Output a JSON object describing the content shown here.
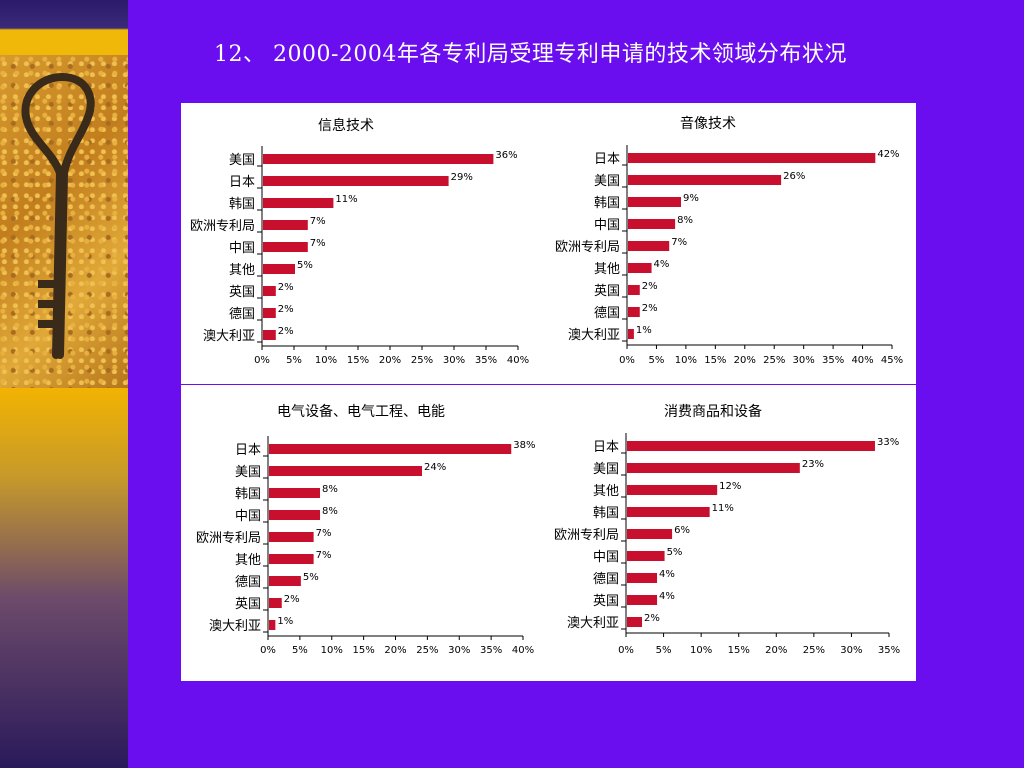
{
  "title": "12、 2000-2004年各专利局受理专利申请的技术领域分布状况",
  "colors": {
    "bar": "#c8102e",
    "background": "#6a0ef0",
    "panel": "#ffffff"
  },
  "chart_data": [
    {
      "type": "bar",
      "orientation": "horizontal",
      "title": "信息技术",
      "categories": [
        "美国",
        "日本",
        "韩国",
        "欧洲专利局",
        "中国",
        "其他",
        "英国",
        "德国",
        "澳大利亚"
      ],
      "category_labels": [
        "美国",
        "日本",
        "韩国",
        "欧洲专利局",
        "中国",
        "其他",
        "英国",
        "德国",
        "澳大利亚"
      ],
      "values": [
        36,
        29,
        11,
        7,
        7,
        5,
        2,
        2,
        2
      ],
      "value_labels": [
        "36%",
        "29%",
        "11%",
        "7%",
        "7%",
        "5%",
        "2%",
        "2%",
        "2%"
      ],
      "xlim": [
        0,
        40
      ],
      "xticks": [
        "0%",
        "5%",
        "10%",
        "15%",
        "20%",
        "25%",
        "30%",
        "35%",
        "40%"
      ]
    },
    {
      "type": "bar",
      "orientation": "horizontal",
      "title": "音像技术",
      "categories": [
        "日本",
        "美国",
        "韩国",
        "中国",
        "欧洲专利局",
        "其他",
        "英国",
        "德国",
        "澳大利亚"
      ],
      "category_labels": [
        "日本",
        "美国",
        "韩国",
        "中国",
        "欧洲专利局",
        "其他",
        "英国",
        "德国",
        "澳大利亚"
      ],
      "values": [
        42,
        26,
        9,
        8,
        7,
        4,
        2,
        2,
        1
      ],
      "value_labels": [
        "42%",
        "26%",
        "9%",
        "8%",
        "7%",
        "4%",
        "2%",
        "2%",
        "1%"
      ],
      "xlim": [
        0,
        45
      ],
      "xticks": [
        "0%",
        "5%",
        "10%",
        "15%",
        "20%",
        "25%",
        "30%",
        "35%",
        "40%",
        "45%"
      ]
    },
    {
      "type": "bar",
      "orientation": "horizontal",
      "title": "电气设备、电气工程、电能",
      "categories": [
        "日本",
        "美国",
        "韩国",
        "中国",
        "欧洲专利局",
        "其他",
        "德国",
        "英国",
        "澳大利亚"
      ],
      "category_labels": [
        "日本",
        "美国",
        "韩国",
        "中国",
        "欧洲专利局",
        "其他",
        "德国",
        "英国",
        "澳大利亚"
      ],
      "values": [
        38,
        24,
        8,
        8,
        7,
        7,
        5,
        2,
        1
      ],
      "value_labels": [
        "38%",
        "24%",
        "8%",
        "8%",
        "7%",
        "7%",
        "5%",
        "2%",
        "1%"
      ],
      "xlim": [
        0,
        40
      ],
      "xticks": [
        "0%",
        "5%",
        "10%",
        "15%",
        "20%",
        "25%",
        "30%",
        "35%",
        "40%"
      ]
    },
    {
      "type": "bar",
      "orientation": "horizontal",
      "title": "消费商品和设备",
      "categories": [
        "日本",
        "美国",
        "其他",
        "韩国",
        "欧洲专利局",
        "中国",
        "德国",
        "英国",
        "澳大利亚"
      ],
      "category_labels": [
        "日本",
        "美国",
        "其他",
        "韩国",
        "欧洲专利局",
        "中国",
        "德国",
        "英国",
        "澳大利亚"
      ],
      "values": [
        33,
        23,
        12,
        11,
        6,
        5,
        4,
        4,
        2
      ],
      "value_labels": [
        "33%",
        "23%",
        "12%",
        "11%",
        "6%",
        "5%",
        "4%",
        "4%",
        "2%"
      ],
      "xlim": [
        0,
        35
      ],
      "xticks": [
        "0%",
        "5%",
        "10%",
        "15%",
        "20%",
        "25%",
        "30%",
        "35%"
      ]
    }
  ]
}
